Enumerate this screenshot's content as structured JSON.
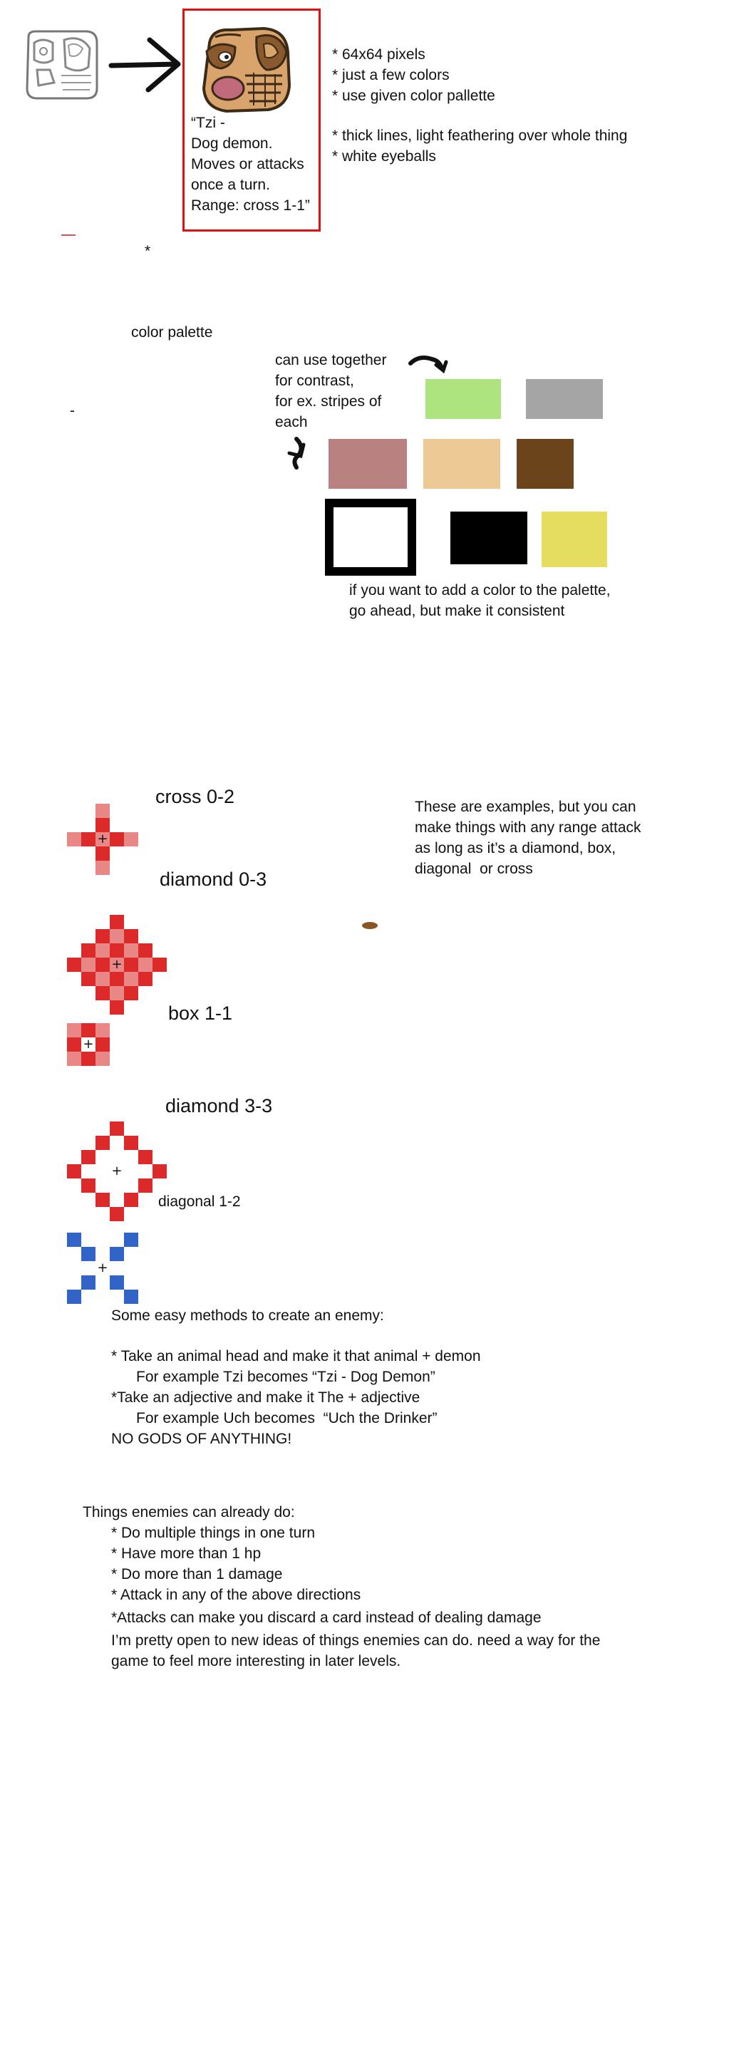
{
  "card": {
    "caption_lines": [
      "“Tzi -",
      "Dog demon.",
      "Moves or attacks",
      "once a turn.",
      "Range: cross 1-1”"
    ]
  },
  "specs": {
    "lines": [
      "* 64x64 pixels",
      "* just a few colors",
      "* use given color pallette"
    ],
    "lines2": [
      "* thick lines, light feathering over whole thing",
      "* white eyeballs"
    ]
  },
  "stray_asterisk": "*",
  "stray_dash": "-",
  "palette": {
    "title": "color palette",
    "contrast_note": [
      "can use together",
      "for contrast,",
      "for ex. stripes of",
      "each"
    ],
    "add_note": [
      "if you want to add a color to the palette,",
      "go ahead, but make it consistent"
    ],
    "colors": {
      "green": "#ade480",
      "gray": "#a5a5a5",
      "rose": "#b98280",
      "tan": "#edc995",
      "brown": "#6b441c",
      "white": "#ffffff",
      "black": "#000000",
      "yellow": "#e4dd60"
    }
  },
  "ranges": {
    "note": [
      "These are examples, but you can",
      "make things with any range attack",
      "as long as it’s a diamond, box,",
      "diagonal  or cross"
    ],
    "center_mark": "+",
    "colors": {
      "red_dark": "#dc2a2a",
      "red_light": "#e98686",
      "blue": "#3264c8"
    },
    "items": [
      {
        "label": "cross 0-2",
        "shape": "cross",
        "min": 0,
        "max": 2,
        "color": "red"
      },
      {
        "label": "diamond 0-3",
        "shape": "diamond",
        "min": 0,
        "max": 3,
        "color": "red"
      },
      {
        "label": "box 1-1",
        "shape": "box",
        "min": 1,
        "max": 1,
        "color": "red"
      },
      {
        "label": "diamond 3-3",
        "shape": "diamond",
        "min": 3,
        "max": 3,
        "color": "red"
      },
      {
        "label": "diagonal 1-2",
        "shape": "diagonal",
        "min": 1,
        "max": 2,
        "color": "blue"
      }
    ]
  },
  "methods": {
    "heading": "Some easy methods to create an enemy:",
    "lines": [
      "* Take an animal head and make it that animal + demon",
      "      For example Tzi becomes “Tzi - Dog Demon”",
      "*Take an adjective and make it The + adjective",
      "      For example Uch becomes  “Uch the Drinker”",
      "NO GODS OF ANYTHING!"
    ]
  },
  "abilities": {
    "heading": "Things enemies can already do:",
    "lines": [
      "* Do multiple things in one turn",
      "* Have more than 1 hp",
      "* Do more than 1 damage",
      "* Attack in any of the above directions",
      "*Attacks can make you discard a card instead of dealing damage",
      "I’m pretty open to new ideas of things enemies can do. need a way for the",
      "game to feel more interesting in later levels."
    ]
  }
}
